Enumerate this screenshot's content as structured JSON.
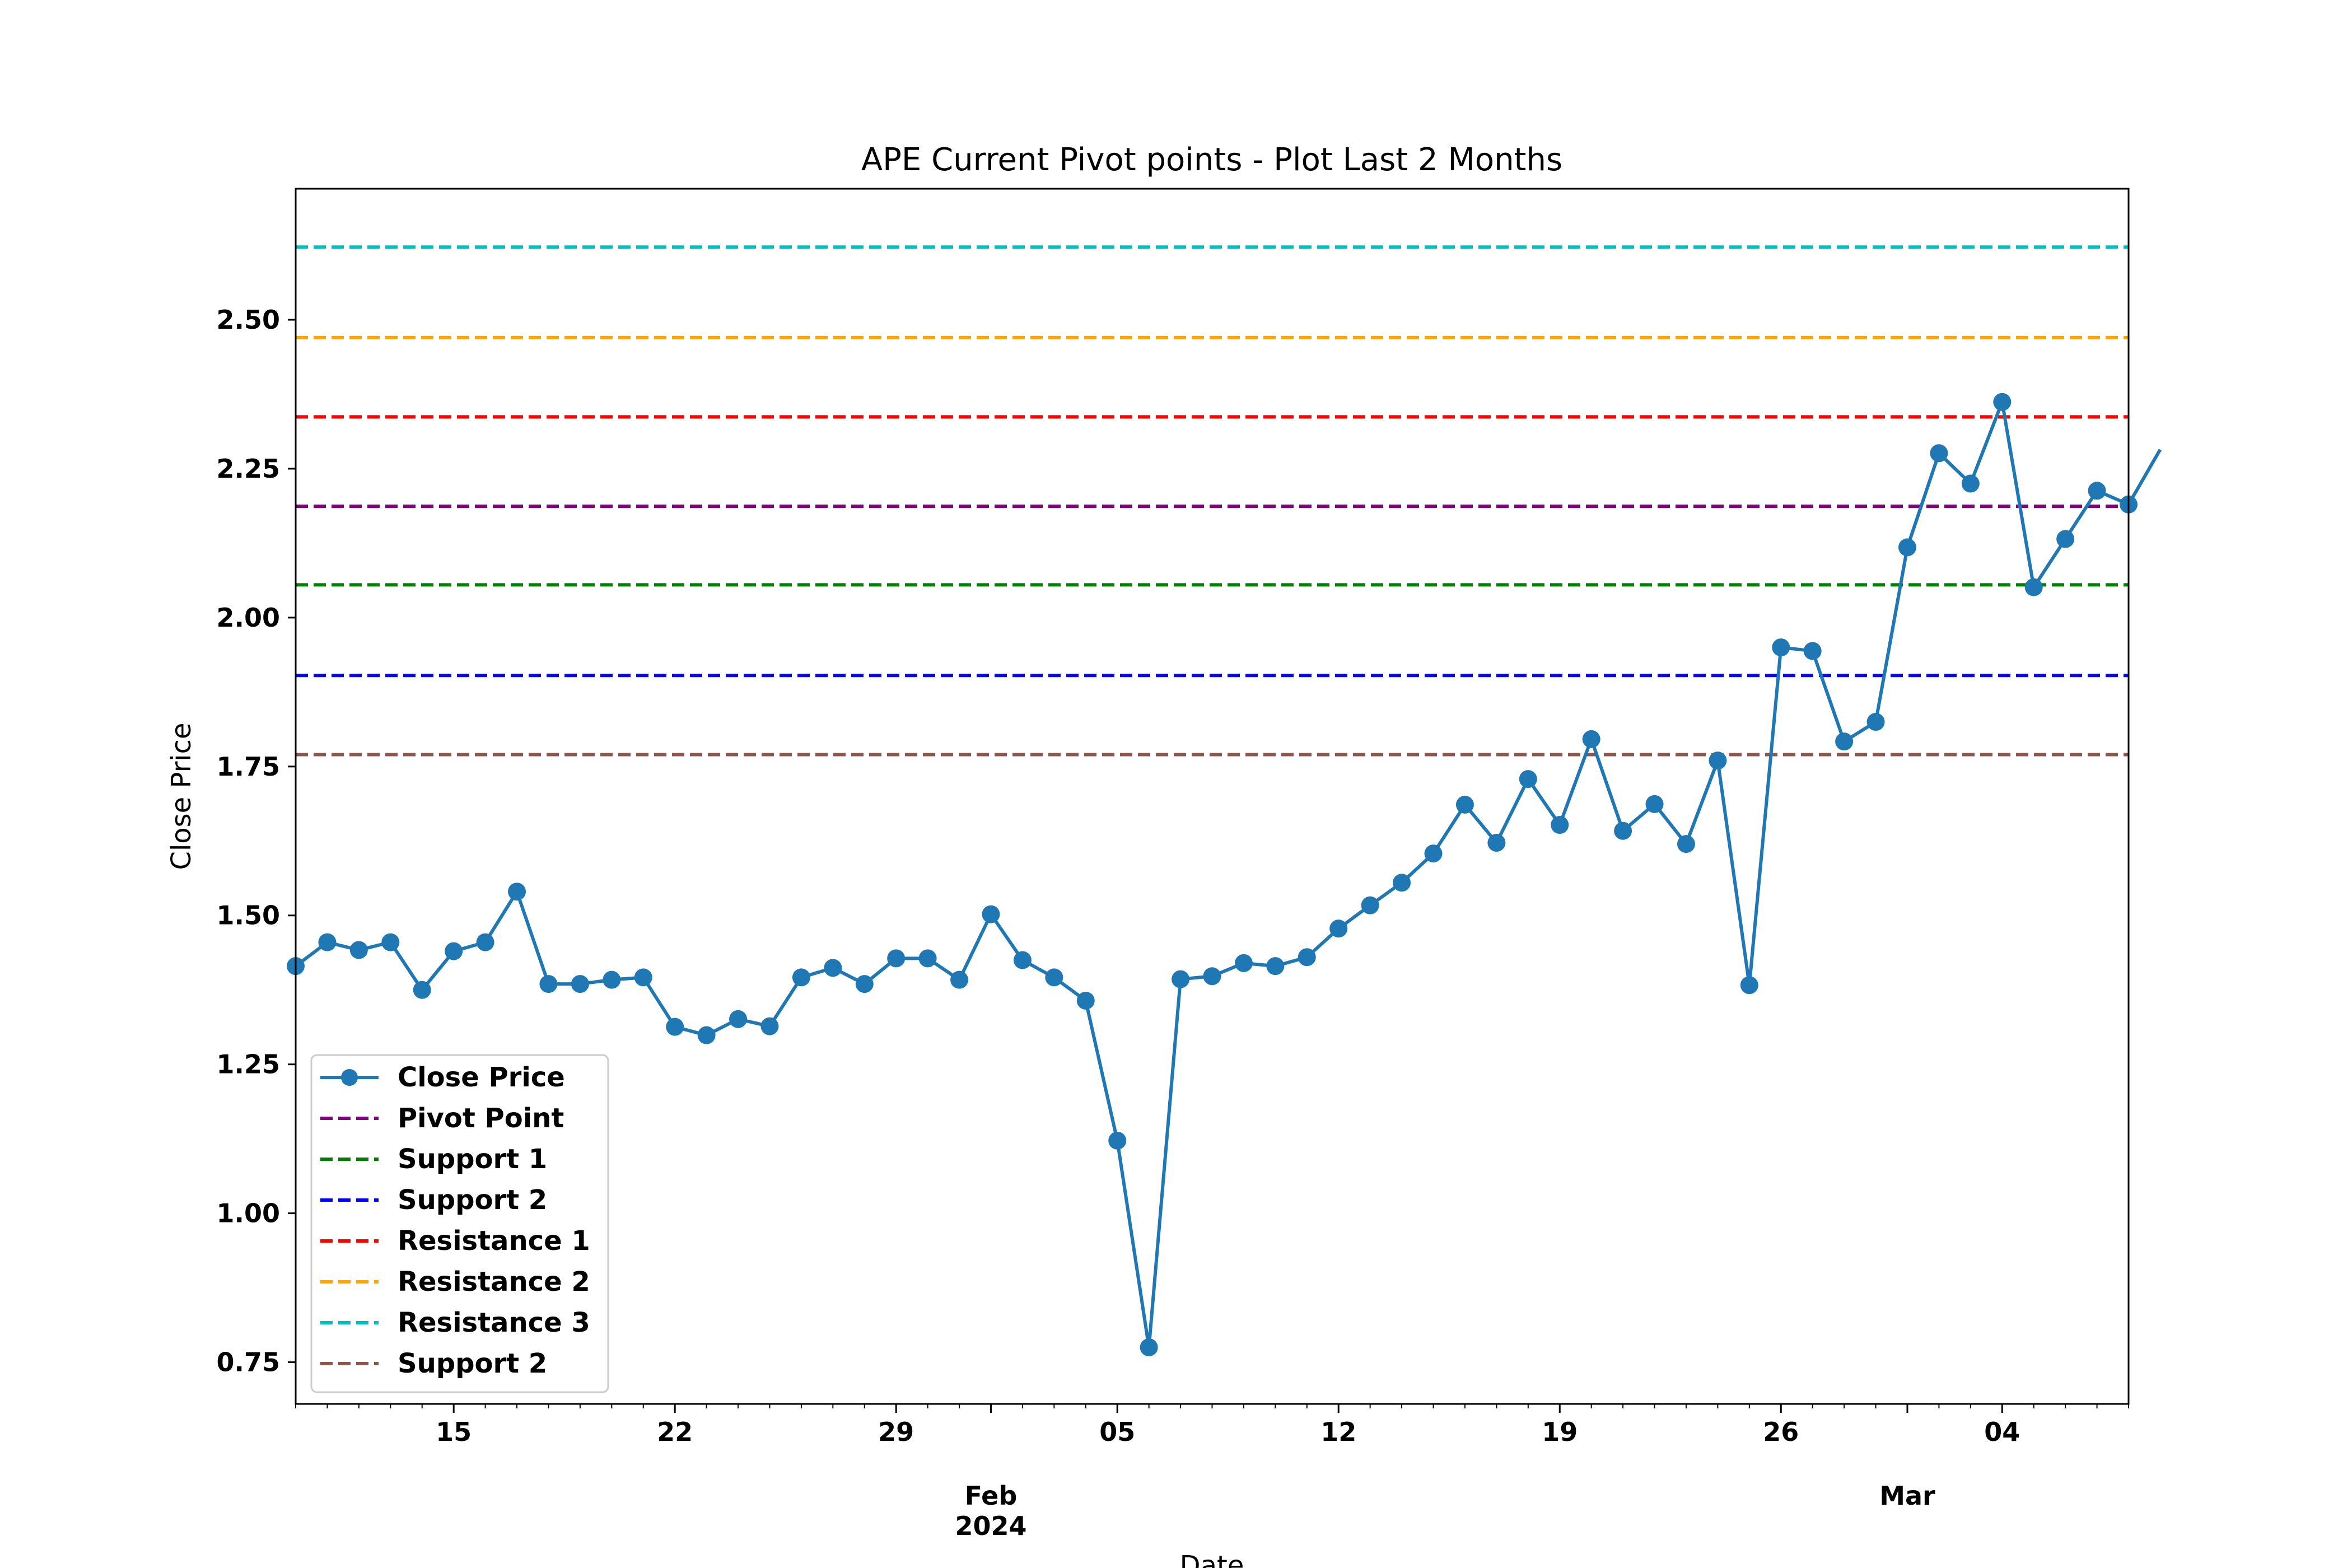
{
  "chart_data": {
    "type": "line",
    "title": "APE Current Pivot points - Plot Last 2 Months",
    "xlabel": "Date",
    "ylabel": "Close Price",
    "ylim": [
      0.68,
      2.72
    ],
    "xlim": [
      "2024-01-10",
      "2024-03-08"
    ],
    "grid": false,
    "legend_position": "lower-left",
    "y_ticks": [
      "0.75",
      "1.00",
      "1.25",
      "1.50",
      "1.75",
      "2.00",
      "2.25",
      "2.50"
    ],
    "x_ticks": [
      {
        "date": "2024-01-15",
        "label": "15"
      },
      {
        "date": "2024-01-22",
        "label": "22"
      },
      {
        "date": "2024-01-29",
        "label": "29"
      },
      {
        "date": "2024-02-05",
        "label": "05"
      },
      {
        "date": "2024-02-12",
        "label": "12"
      },
      {
        "date": "2024-02-19",
        "label": "19"
      },
      {
        "date": "2024-02-26",
        "label": "26"
      },
      {
        "date": "2024-03-04",
        "label": "04"
      }
    ],
    "x_month_labels": [
      {
        "date": "2024-02-01",
        "label": "Feb"
      },
      {
        "date": "2024-03-01",
        "label": "Mar"
      }
    ],
    "x_year_label": {
      "date": "2024-02-01",
      "label": "2024"
    },
    "series": [
      {
        "name": "Close Price",
        "color": "#1f77b4",
        "style": "solid-marker",
        "x": [
          "2024-01-10",
          "2024-01-11",
          "2024-01-12",
          "2024-01-13",
          "2024-01-14",
          "2024-01-15",
          "2024-01-16",
          "2024-01-17",
          "2024-01-18",
          "2024-01-19",
          "2024-01-20",
          "2024-01-21",
          "2024-01-22",
          "2024-01-23",
          "2024-01-24",
          "2024-01-25",
          "2024-01-26",
          "2024-01-27",
          "2024-01-28",
          "2024-01-29",
          "2024-01-30",
          "2024-01-31",
          "2024-02-01",
          "2024-02-02",
          "2024-02-03",
          "2024-02-04",
          "2024-02-05",
          "2024-02-06",
          "2024-02-07",
          "2024-02-08",
          "2024-02-09",
          "2024-02-10",
          "2024-02-11",
          "2024-02-12",
          "2024-02-13",
          "2024-02-14",
          "2024-02-15",
          "2024-02-16",
          "2024-02-17",
          "2024-02-18",
          "2024-02-19",
          "2024-02-20",
          "2024-02-21",
          "2024-02-22",
          "2024-02-23",
          "2024-02-24",
          "2024-02-25",
          "2024-02-26",
          "2024-02-27",
          "2024-02-28",
          "2024-02-29",
          "2024-03-01",
          "2024-03-02",
          "2024-03-03",
          "2024-03-04",
          "2024-03-05",
          "2024-03-06",
          "2024-03-07",
          "2024-03-08",
          "2024-03-09"
        ],
        "values": [
          1.415,
          1.455,
          1.442,
          1.455,
          1.375,
          1.44,
          1.455,
          1.54,
          1.385,
          1.385,
          1.392,
          1.396,
          1.313,
          1.299,
          1.326,
          1.314,
          1.396,
          1.412,
          1.385,
          1.428,
          1.428,
          1.392,
          1.502,
          1.425,
          1.396,
          1.357,
          1.122,
          0.775,
          1.393,
          1.398,
          1.42,
          1.415,
          1.43,
          1.478,
          1.517,
          1.555,
          1.604,
          1.686,
          1.622,
          1.729,
          1.652,
          1.796,
          1.642,
          1.687,
          1.62,
          1.76,
          1.383,
          1.95,
          1.944,
          1.792,
          1.825,
          2.118,
          2.276,
          2.225,
          2.362,
          2.051,
          2.132,
          2.213,
          2.19,
          2.282
        ]
      },
      {
        "name": "Pivot Point",
        "color": "#800080",
        "style": "dashed",
        "value": 2.187
      },
      {
        "name": "Support 1",
        "color": "#008000",
        "style": "dashed",
        "value": 2.055
      },
      {
        "name": "Support 2",
        "color": "#0000ff",
        "style": "dashed",
        "value": 1.903
      },
      {
        "name": "Resistance 1",
        "color": "#ff0000",
        "style": "dashed",
        "value": 2.337
      },
      {
        "name": "Resistance 2",
        "color": "#ffa500",
        "style": "dashed",
        "value": 2.47
      },
      {
        "name": "Resistance 3",
        "color": "#00bfbf",
        "style": "dashed",
        "value": 2.622
      },
      {
        "name": "Support 2",
        "color": "#8c564b",
        "style": "dashed",
        "value": 1.77
      }
    ]
  }
}
